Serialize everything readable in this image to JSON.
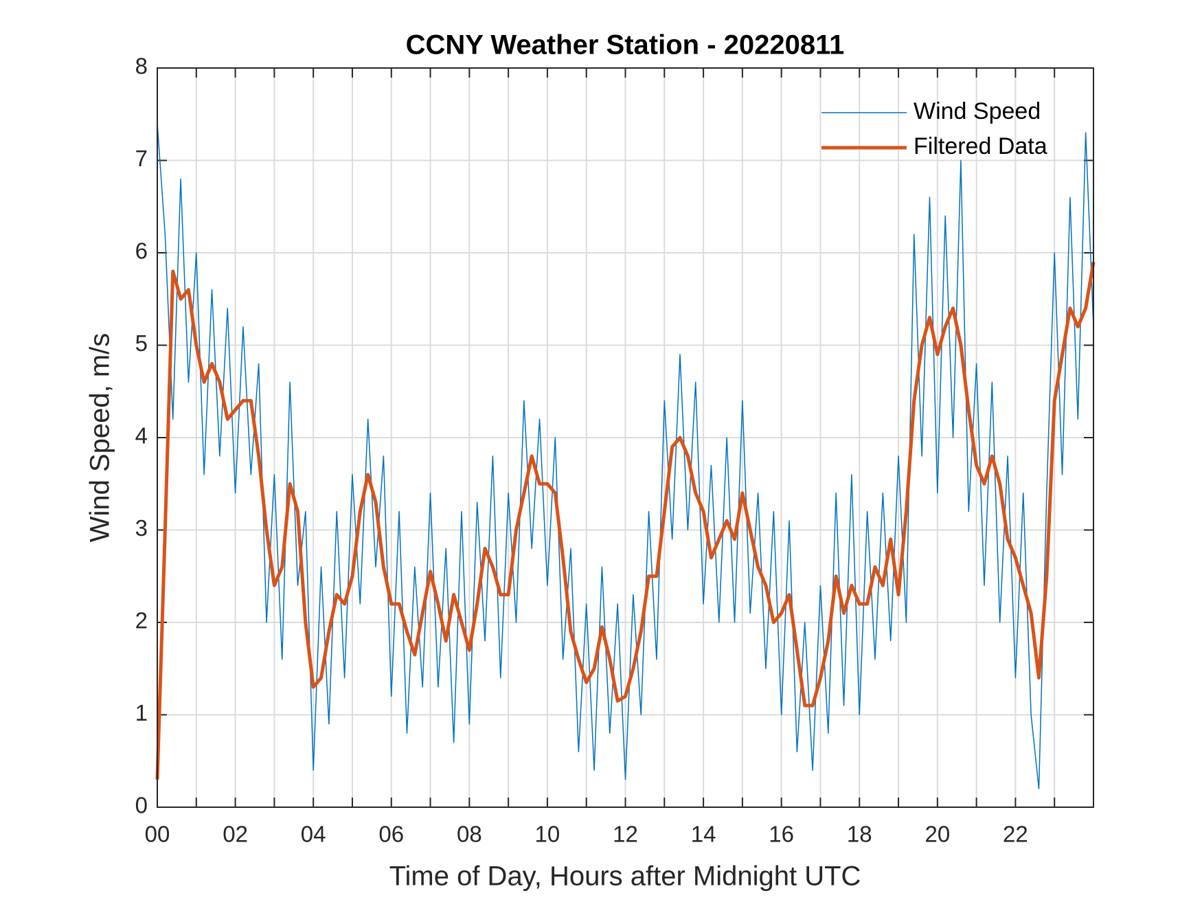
{
  "chart_data": {
    "type": "line",
    "title": "CCNY Weather Station - 20220811",
    "x_label": "Time of Day, Hours after Midnight UTC",
    "y_label": "Wind Speed, m/s",
    "xlim": [
      0,
      24
    ],
    "ylim": [
      0,
      8
    ],
    "xticks": [
      {
        "value": 0,
        "label": "00"
      },
      {
        "value": 2,
        "label": "02"
      },
      {
        "value": 4,
        "label": "04"
      },
      {
        "value": 6,
        "label": "06"
      },
      {
        "value": 8,
        "label": "08"
      },
      10,
      12,
      14,
      16,
      18,
      20,
      22
    ],
    "xminorticks": [
      1,
      3,
      5,
      7,
      9,
      11,
      13,
      15,
      17,
      19,
      21,
      23
    ],
    "yticks": [
      0,
      1,
      2,
      3,
      4,
      5,
      6,
      7,
      8
    ],
    "grid": true,
    "legend": "upper right",
    "x": [
      0,
      0.2,
      0.4,
      0.6,
      0.8,
      1,
      1.2,
      1.4,
      1.6,
      1.8,
      2,
      2.2,
      2.4,
      2.6,
      2.8,
      3,
      3.2,
      3.4,
      3.6,
      3.8,
      4,
      4.2,
      4.4,
      4.6,
      4.8,
      5,
      5.2,
      5.4,
      5.6,
      5.8,
      6,
      6.2,
      6.4,
      6.6,
      6.8,
      7,
      7.2,
      7.4,
      7.6,
      7.8,
      8,
      8.2,
      8.4,
      8.6,
      8.8,
      9,
      9.2,
      9.4,
      9.6,
      9.8,
      10,
      10.2,
      10.4,
      10.6,
      10.8,
      11,
      11.2,
      11.4,
      11.6,
      11.8,
      12,
      12.2,
      12.4,
      12.6,
      12.8,
      13,
      13.2,
      13.4,
      13.6,
      13.8,
      14,
      14.2,
      14.4,
      14.6,
      14.8,
      15,
      15.2,
      15.4,
      15.6,
      15.8,
      16,
      16.2,
      16.4,
      16.6,
      16.8,
      17,
      17.2,
      17.4,
      17.6,
      17.8,
      18,
      18.2,
      18.4,
      18.6,
      18.8,
      19,
      19.2,
      19.4,
      19.6,
      19.8,
      20,
      20.2,
      20.4,
      20.6,
      20.8,
      21,
      21.2,
      21.4,
      21.6,
      21.8,
      22,
      22.2,
      22.4,
      22.6,
      22.8,
      23,
      23.2,
      23.4,
      23.6,
      23.8,
      24
    ],
    "series": [
      {
        "name": "Wind Speed",
        "color": "#0072BD",
        "width": 1.5,
        "values": [
          7.4,
          6.2,
          4.2,
          6.8,
          4.6,
          6.0,
          3.6,
          5.6,
          3.8,
          5.4,
          3.4,
          5.2,
          3.6,
          4.8,
          2.0,
          3.6,
          1.6,
          4.6,
          2.4,
          3.2,
          0.4,
          2.6,
          0.9,
          3.2,
          1.4,
          3.6,
          2.2,
          4.2,
          2.6,
          3.8,
          1.2,
          3.2,
          0.8,
          2.6,
          1.3,
          3.4,
          1.3,
          2.8,
          0.7,
          3.2,
          0.9,
          3.3,
          1.8,
          3.8,
          1.4,
          3.4,
          2.0,
          4.4,
          2.8,
          4.2,
          2.4,
          4.0,
          1.6,
          2.8,
          0.6,
          2.2,
          0.4,
          2.6,
          0.8,
          2.2,
          0.3,
          2.3,
          1.0,
          3.2,
          1.6,
          4.4,
          2.9,
          4.9,
          3.0,
          4.6,
          2.2,
          3.7,
          2.0,
          4.0,
          2.0,
          4.4,
          2.1,
          3.4,
          1.5,
          3.2,
          1.0,
          3.1,
          0.6,
          2.0,
          0.4,
          2.4,
          0.8,
          3.4,
          1.1,
          3.6,
          1.0,
          3.2,
          1.6,
          3.4,
          1.8,
          3.8,
          2.0,
          6.2,
          3.8,
          6.6,
          3.4,
          6.4,
          4.0,
          7.0,
          3.2,
          4.8,
          2.4,
          4.6,
          2.0,
          3.8,
          1.4,
          3.4,
          1.0,
          0.2,
          3.4,
          6.0,
          3.6,
          6.6,
          4.2,
          7.3,
          5.2
        ]
      },
      {
        "name": "Filtered Data",
        "color": "#D95319",
        "width": 5,
        "values": [
          0.3,
          3.0,
          5.8,
          5.5,
          5.6,
          5.0,
          4.6,
          4.8,
          4.6,
          4.2,
          4.3,
          4.4,
          4.4,
          3.8,
          3.0,
          2.4,
          2.6,
          3.5,
          3.2,
          2.0,
          1.3,
          1.4,
          1.9,
          2.3,
          2.2,
          2.5,
          3.2,
          3.6,
          3.3,
          2.6,
          2.2,
          2.2,
          1.9,
          1.65,
          2.1,
          2.55,
          2.2,
          1.8,
          2.3,
          2.0,
          1.7,
          2.2,
          2.8,
          2.6,
          2.3,
          2.3,
          3.0,
          3.4,
          3.8,
          3.5,
          3.5,
          3.4,
          2.7,
          1.9,
          1.6,
          1.35,
          1.5,
          1.95,
          1.6,
          1.15,
          1.2,
          1.5,
          1.9,
          2.5,
          2.5,
          3.2,
          3.9,
          4.0,
          3.8,
          3.4,
          3.2,
          2.7,
          2.9,
          3.1,
          2.9,
          3.4,
          3.0,
          2.6,
          2.4,
          2.0,
          2.1,
          2.3,
          1.7,
          1.1,
          1.1,
          1.4,
          1.8,
          2.5,
          2.1,
          2.4,
          2.2,
          2.2,
          2.6,
          2.4,
          2.9,
          2.3,
          3.2,
          4.4,
          5.0,
          5.3,
          4.9,
          5.2,
          5.4,
          5.0,
          4.3,
          3.7,
          3.5,
          3.8,
          3.5,
          2.9,
          2.7,
          2.4,
          2.1,
          1.4,
          2.5,
          4.4,
          4.9,
          5.4,
          5.2,
          5.4,
          5.9
        ]
      }
    ]
  }
}
